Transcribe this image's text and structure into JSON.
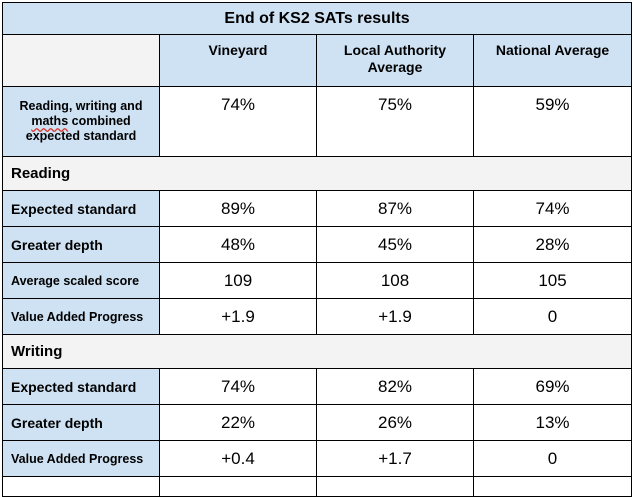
{
  "title": "End of KS2 SATs results",
  "columns": [
    "",
    "Vineyard",
    "Local Authority Average",
    "National Average"
  ],
  "combined": {
    "label_pre": "Reading, writing and ",
    "label_spell": "maths",
    "label_post": " combined expected standard",
    "values": [
      "74%",
      "75%",
      "59%"
    ]
  },
  "sections": [
    {
      "title": "Reading",
      "rows": [
        {
          "label": "Expected standard",
          "values": [
            "89%",
            "87%",
            "74%"
          ]
        },
        {
          "label": "Greater depth",
          "values": [
            "48%",
            "45%",
            "28%"
          ]
        },
        {
          "label": "Average scaled score",
          "values": [
            "109",
            "108",
            "105"
          ]
        },
        {
          "label": "Value Added Progress",
          "values": [
            "+1.9",
            "+1.9",
            "0"
          ]
        }
      ]
    },
    {
      "title": "Writing",
      "rows": [
        {
          "label": "Expected standard",
          "values": [
            "74%",
            "82%",
            "69%"
          ]
        },
        {
          "label": "Greater depth",
          "values": [
            "22%",
            "26%",
            "13%"
          ]
        },
        {
          "label": "Value Added Progress",
          "values": [
            "+0.4",
            "+1.7",
            "0"
          ]
        }
      ]
    }
  ]
}
